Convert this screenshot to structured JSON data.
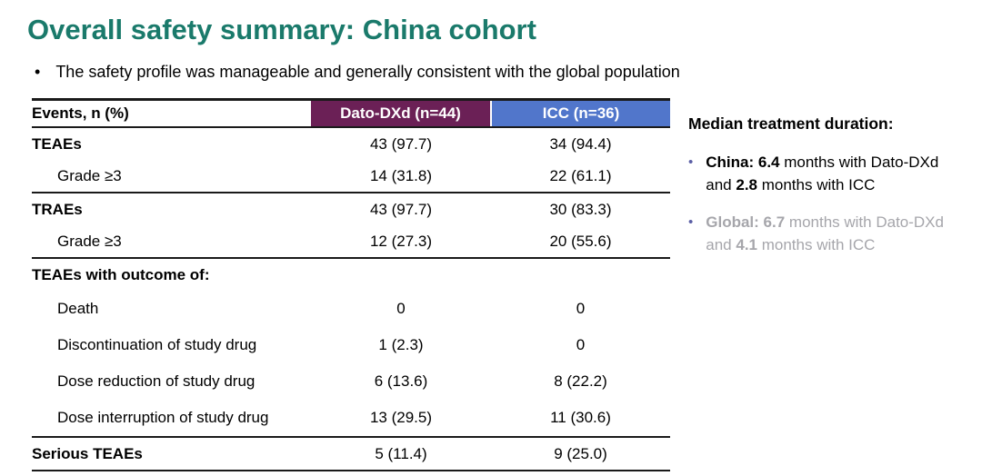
{
  "slide": {
    "title": "Overall safety summary: China cohort",
    "lead_bullet": "The safety profile was manageable and generally consistent with the global population",
    "bullet_glyph": "•"
  },
  "colors": {
    "title_teal": "#1A7A6B",
    "dato_header_maroon": "#6B2056",
    "icc_header_blue": "#5176CB",
    "sidebar_bullet_accent": "#5B5FA5",
    "muted_gray": "#A6A6AB"
  },
  "table": {
    "columns": [
      "Events, n (%)",
      "Dato-DXd (n=44)",
      "ICC (n=36)"
    ],
    "rows": [
      {
        "label": "TEAEs",
        "dato": "43 (97.7)",
        "icc": "34 (94.4)"
      },
      {
        "label": "Grade ≥3",
        "dato": "14 (31.8)",
        "icc": "22 (61.1)"
      },
      {
        "label": "TRAEs",
        "dato": "43 (97.7)",
        "icc": "30 (83.3)"
      },
      {
        "label": "Grade ≥3",
        "dato": "12 (27.3)",
        "icc": "20 (55.6)"
      },
      {
        "label": "TEAEs with outcome of:",
        "dato": "",
        "icc": ""
      },
      {
        "label": "Death",
        "dato": "0",
        "icc": "0"
      },
      {
        "label": "Discontinuation of study drug",
        "dato": "1 (2.3)",
        "icc": "0"
      },
      {
        "label": "Dose reduction of study drug",
        "dato": "6 (13.6)",
        "icc": "8 (22.2)"
      },
      {
        "label": "Dose interruption of study drug",
        "dato": "13 (29.5)",
        "icc": "11 (30.6)"
      },
      {
        "label": "Serious TEAEs",
        "dato": "5 (11.4)",
        "icc": "9 (25.0)"
      }
    ]
  },
  "sidebar": {
    "heading": "Median treatment duration:",
    "bullets": [
      {
        "line1_bold": "China: 6.4",
        "line1_rest": " months with Dato-DXd",
        "line2_pre": "and ",
        "line2_bold": "2.8",
        "line2_rest": " months with ICC"
      },
      {
        "line1_bold": "Global: 6.7",
        "line1_rest": " months with Dato-DXd",
        "line2_pre": "and ",
        "line2_bold": "4.1",
        "line2_rest": " months with ICC"
      }
    ]
  }
}
